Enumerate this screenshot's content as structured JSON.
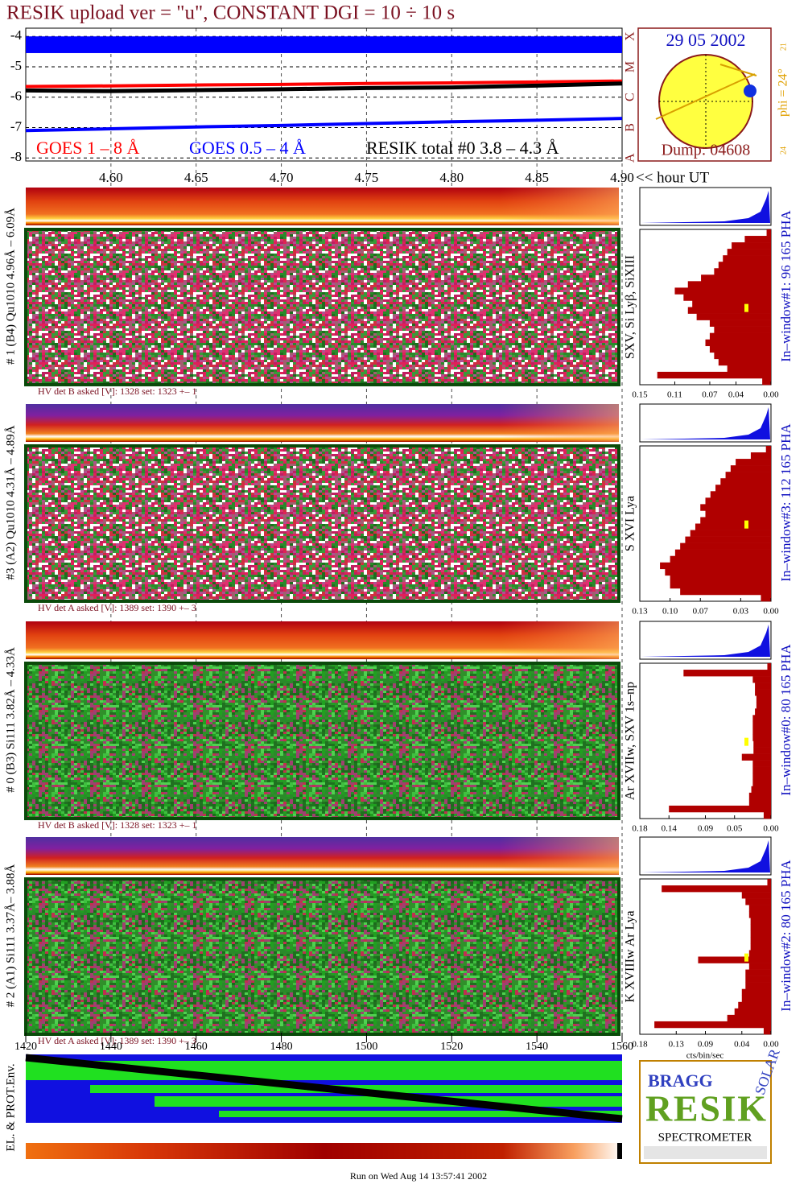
{
  "title": "RESIK upload ver = \"u\", CONSTANT  DGI =  10 ÷  10 s",
  "goes": {
    "xlim": [
      4.55,
      4.9
    ],
    "ylim": [
      -8.1,
      -3.73
    ],
    "xticks": [
      {
        "value": 4.6,
        "label": "4.60"
      },
      {
        "value": 4.65,
        "label": "4.65"
      },
      {
        "value": 4.7,
        "label": "4.70"
      },
      {
        "value": 4.75,
        "label": "4.75"
      },
      {
        "value": 4.8,
        "label": "4.80"
      },
      {
        "value": 4.85,
        "label": "4.85"
      },
      {
        "value": 4.9,
        "label": "4.90"
      }
    ],
    "yticks": [
      -4,
      -5,
      -6,
      -7,
      -8
    ],
    "x_label": "<< hour UT",
    "flare_classes": [
      {
        "value": -4,
        "label": "X"
      },
      {
        "value": -5,
        "label": "M"
      },
      {
        "value": -6,
        "label": "C"
      },
      {
        "value": -7,
        "label": "B"
      },
      {
        "value": -8,
        "label": "A"
      }
    ],
    "x": [
      4.55,
      4.6,
      4.65,
      4.7,
      4.75,
      4.8,
      4.85,
      4.9
    ],
    "series": [
      {
        "name": "GOES 1 – 8 Å",
        "color": "#ff0000",
        "values": [
          -5.65,
          -5.63,
          -5.6,
          -5.58,
          -5.55,
          -5.53,
          -5.5,
          -5.47
        ]
      },
      {
        "name": "GOES 0.5 – 4 Å",
        "color": "#0000ff",
        "values": [
          -7.1,
          -7.04,
          -6.98,
          -6.93,
          -6.87,
          -6.81,
          -6.76,
          -6.7
        ],
        "band": [
          -4.0,
          -4.55
        ]
      },
      {
        "name": "RESIK total #0  3.8 – 4.3 Å",
        "color": "#000000",
        "values": [
          -5.78,
          -5.8,
          -5.77,
          -5.74,
          -5.7,
          -5.68,
          -5.62,
          -5.55
        ]
      }
    ]
  },
  "sun": {
    "date": "29 05 2002",
    "dump": "Dump: 04608",
    "phi": "phi = 24°",
    "top_number": "21",
    "bottom_number": "24"
  },
  "detectors": [
    {
      "label": "# 1 (B4) Qu1010 4.96Å – 6.09Å",
      "lines": "SXV, Si Lyβ, SiXIII",
      "hv": "HV det B asked [V]:  1328 set:  1323 +–    1",
      "pha": "In–window#1:   96 165  PHA",
      "hist": {
        "xlim": [
          0.15,
          0.0
        ],
        "xticks": [
          {
            "value": 0.15,
            "label": "0.15"
          },
          {
            "value": 0.11,
            "label": "0.11"
          },
          {
            "value": 0.07,
            "label": "0.07"
          },
          {
            "value": 0.04,
            "label": "0.04"
          },
          {
            "value": 0,
            "label": "0.00"
          }
        ],
        "values": [
          0.005,
          0.03,
          0.045,
          0.05,
          0.055,
          0.06,
          0.065,
          0.08,
          0.095,
          0.11,
          0.1,
          0.09,
          0.095,
          0.085,
          0.07,
          0.065,
          0.07,
          0.075,
          0.07,
          0.065,
          0.06,
          0.05,
          0.13,
          0.01
        ]
      }
    },
    {
      "label": "#3 (A2) Qu1010  4.31Å – 4.89Å",
      "lines": "S XVI Lya",
      "hv": "HV det A asked [V]:  1389 set:  1390 +–    3",
      "pha": "In–window#3:   112 165  PHA",
      "hist": {
        "xlim": [
          0.13,
          0.0
        ],
        "xticks": [
          {
            "value": 0.13,
            "label": "0.13"
          },
          {
            "value": 0.1,
            "label": "0.10"
          },
          {
            "value": 0.07,
            "label": "0.07"
          },
          {
            "value": 0.03,
            "label": "0.03"
          },
          {
            "value": 0,
            "label": "0.00"
          }
        ],
        "values": [
          0.005,
          0.02,
          0.035,
          0.04,
          0.045,
          0.05,
          0.055,
          0.06,
          0.065,
          0.07,
          0.065,
          0.07,
          0.075,
          0.08,
          0.085,
          0.09,
          0.095,
          0.1,
          0.11,
          0.105,
          0.1,
          0.1,
          0.09,
          0.01
        ]
      }
    },
    {
      "label": "# 0 (B3) Si111  3.82Å – 4.33Å",
      "lines": "Ar XVIIw,  SXV 1s–np",
      "hv": "HV det B asked [V]:  1328 set:  1323 +–    1",
      "pha": "In–window#0:   80 165  PHA",
      "hist": {
        "xlim": [
          0.18,
          0.0
        ],
        "xticks": [
          {
            "value": 0.18,
            "label": "0.18"
          },
          {
            "value": 0.14,
            "label": "0.14"
          },
          {
            "value": 0.09,
            "label": "0.09"
          },
          {
            "value": 0.05,
            "label": "0.05"
          },
          {
            "value": 0,
            "label": "0.00"
          }
        ],
        "values": [
          0.005,
          0.12,
          0.025,
          0.022,
          0.022,
          0.02,
          0.02,
          0.022,
          0.025,
          0.025,
          0.025,
          0.025,
          0.024,
          0.024,
          0.04,
          0.025,
          0.025,
          0.025,
          0.025,
          0.027,
          0.03,
          0.03,
          0.14,
          0.01
        ]
      }
    },
    {
      "label": "# 2 (A1) Si111  3.37Å– 3.88Å",
      "lines": "K XVIIIw  Ar Lya",
      "hv": "HV det A asked [V]:  1389 set:  1390 +–    3",
      "pha": "In–window#2:   80 165  PHA",
      "hist": {
        "xlim": [
          0.18,
          0.0
        ],
        "xticks": [
          {
            "value": 0.18,
            "label": "0.18"
          },
          {
            "value": 0.13,
            "label": "0.13"
          },
          {
            "value": 0.09,
            "label": "0.09"
          },
          {
            "value": 0.04,
            "label": "0.04"
          },
          {
            "value": 0,
            "label": "0.00"
          }
        ],
        "values": [
          0.005,
          0.15,
          0.04,
          0.035,
          0.03,
          0.03,
          0.028,
          0.028,
          0.028,
          0.028,
          0.028,
          0.03,
          0.1,
          0.03,
          0.035,
          0.035,
          0.035,
          0.04,
          0.04,
          0.045,
          0.05,
          0.06,
          0.16,
          0.01
        ]
      }
    }
  ],
  "hist_unit": "cts/bin/sec",
  "env": {
    "label": "EL. & PROT.Env.",
    "xlim": [
      1420,
      1560
    ],
    "xticks": [
      1420,
      1440,
      1460,
      1480,
      1500,
      1520,
      1540,
      1560
    ]
  },
  "logo": {
    "bragg": "BRAGG",
    "resik": "RESIK",
    "solar": "SOLAR",
    "spectrometer": "SPECTROMETER"
  },
  "footer": "Run on Wed Aug 14 13:57:41 2002"
}
